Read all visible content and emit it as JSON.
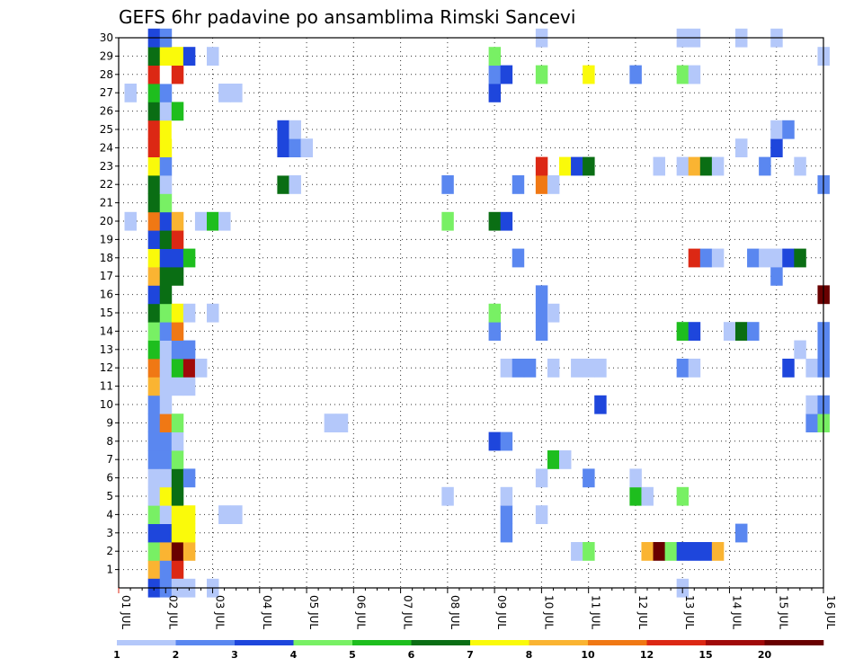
{
  "chart_data": {
    "type": "heatmap",
    "title": "GEFS 6hr padavine po ansamblima Rimski Sancevi",
    "xlabel": "",
    "ylabel": "",
    "x_ticks": [
      "01 JUL",
      "02 JUL",
      "03 JUL",
      "04 JUL",
      "05 JUL",
      "06 JUL",
      "07 JUL",
      "08 JUL",
      "09 JUL",
      "10 JUL",
      "11 JUL",
      "12 JUL",
      "13 JUL",
      "14 JUL",
      "15 JUL",
      "16 JUL"
    ],
    "y_ticks": [
      "1",
      "2",
      "3",
      "4",
      "5",
      "6",
      "7",
      "8",
      "9",
      "10",
      "11",
      "12",
      "13",
      "14",
      "15",
      "16",
      "17",
      "18",
      "19",
      "20",
      "21",
      "22",
      "23",
      "24",
      "25",
      "26",
      "27",
      "28",
      "29",
      "30"
    ],
    "xlim_days": [
      1,
      16
    ],
    "ylim": [
      0,
      30
    ],
    "grid": true,
    "legend_position": "bottom",
    "legend": {
      "labels": [
        "1",
        "2",
        "3",
        "4",
        "5",
        "6",
        "7",
        "8",
        "10",
        "12",
        "15",
        "20"
      ],
      "colors": [
        "#b4c8fa",
        "#5a87f0",
        "#1e46dc",
        "#78f064",
        "#1ebe1e",
        "#0a6e14",
        "#fafa0a",
        "#fab432",
        "#f07814",
        "#dc2814",
        "#a00a0a",
        "#690000"
      ]
    },
    "cells": [
      [
        1.75,
        1,
        "#fab432"
      ],
      [
        1.75,
        2,
        "#78f064"
      ],
      [
        1.75,
        3,
        "#1e46dc"
      ],
      [
        1.75,
        4,
        "#78f064"
      ],
      [
        1.75,
        5,
        "#b4c8fa"
      ],
      [
        1.75,
        6,
        "#b4c8fa"
      ],
      [
        1.75,
        7,
        "#5a87f0"
      ],
      [
        1.75,
        8,
        "#5a87f0"
      ],
      [
        1.75,
        9,
        "#5a87f0"
      ],
      [
        1.75,
        10,
        "#5a87f0"
      ],
      [
        1.75,
        11,
        "#fab432"
      ],
      [
        1.75,
        12,
        "#f07814"
      ],
      [
        1.75,
        13,
        "#1ebe1e"
      ],
      [
        1.75,
        14,
        "#78f064"
      ],
      [
        1.75,
        15,
        "#0a6e14"
      ],
      [
        1.75,
        16,
        "#1e46dc"
      ],
      [
        1.75,
        17,
        "#fab432"
      ],
      [
        1.75,
        18,
        "#fafa0a"
      ],
      [
        1.75,
        19,
        "#1e46dc"
      ],
      [
        1.75,
        20,
        "#f07814"
      ],
      [
        1.75,
        21,
        "#0a6e14"
      ],
      [
        1.75,
        22,
        "#0a6e14"
      ],
      [
        1.75,
        23,
        "#fafa0a"
      ],
      [
        1.75,
        24,
        "#dc2814"
      ],
      [
        1.75,
        25,
        "#dc2814"
      ],
      [
        1.75,
        26,
        "#0a6e14"
      ],
      [
        1.75,
        27,
        "#1ebe1e"
      ],
      [
        1.75,
        28,
        "#dc2814"
      ],
      [
        1.75,
        29,
        "#0a6e14"
      ],
      [
        1.75,
        30,
        "#1e46dc"
      ],
      [
        1.75,
        0,
        "#1e46dc"
      ],
      [
        2.0,
        1,
        "#5a87f0"
      ],
      [
        2.0,
        2,
        "#fab432"
      ],
      [
        2.0,
        3,
        "#1e46dc"
      ],
      [
        2.0,
        4,
        "#b4c8fa"
      ],
      [
        2.0,
        5,
        "#fafa0a"
      ],
      [
        2.0,
        6,
        "#b4c8fa"
      ],
      [
        2.0,
        7,
        "#5a87f0"
      ],
      [
        2.0,
        8,
        "#5a87f0"
      ],
      [
        2.0,
        9,
        "#f07814"
      ],
      [
        2.0,
        10,
        "#b4c8fa"
      ],
      [
        2.0,
        11,
        "#b4c8fa"
      ],
      [
        2.0,
        12,
        "#b4c8fa"
      ],
      [
        2.0,
        13,
        "#b4c8fa"
      ],
      [
        2.0,
        14,
        "#5a87f0"
      ],
      [
        2.0,
        15,
        "#78f064"
      ],
      [
        2.0,
        16,
        "#0a6e14"
      ],
      [
        2.0,
        17,
        "#0a6e14"
      ],
      [
        2.0,
        18,
        "#1e46dc"
      ],
      [
        2.0,
        19,
        "#0a6e14"
      ],
      [
        2.0,
        20,
        "#1e46dc"
      ],
      [
        2.0,
        21,
        "#78f064"
      ],
      [
        2.0,
        22,
        "#b4c8fa"
      ],
      [
        2.0,
        23,
        "#5a87f0"
      ],
      [
        2.0,
        24,
        "#fafa0a"
      ],
      [
        2.0,
        25,
        "#fafa0a"
      ],
      [
        2.0,
        26,
        "#b4c8fa"
      ],
      [
        2.0,
        27,
        "#5a87f0"
      ],
      [
        2.0,
        28,
        "#ffffff"
      ],
      [
        2.0,
        29,
        "#fafa0a"
      ],
      [
        2.0,
        30,
        "#5a87f0"
      ],
      [
        2.0,
        0,
        "#5a87f0"
      ],
      [
        2.25,
        1,
        "#dc2814"
      ],
      [
        2.25,
        2,
        "#690000"
      ],
      [
        2.25,
        3,
        "#fafa0a"
      ],
      [
        2.25,
        4,
        "#fafa0a"
      ],
      [
        2.25,
        5,
        "#0a6e14"
      ],
      [
        2.25,
        6,
        "#0a6e14"
      ],
      [
        2.25,
        7,
        "#78f064"
      ],
      [
        2.25,
        8,
        "#b4c8fa"
      ],
      [
        2.25,
        9,
        "#78f064"
      ],
      [
        2.25,
        11,
        "#b4c8fa"
      ],
      [
        2.25,
        12,
        "#1ebe1e"
      ],
      [
        2.25,
        13,
        "#5a87f0"
      ],
      [
        2.25,
        14,
        "#f07814"
      ],
      [
        2.25,
        15,
        "#fafa0a"
      ],
      [
        2.25,
        17,
        "#0a6e14"
      ],
      [
        2.25,
        18,
        "#1e46dc"
      ],
      [
        2.25,
        19,
        "#dc2814"
      ],
      [
        2.25,
        20,
        "#fab432"
      ],
      [
        2.25,
        25,
        "#ffffff"
      ],
      [
        2.25,
        26,
        "#1ebe1e"
      ],
      [
        2.25,
        28,
        "#dc2814"
      ],
      [
        2.25,
        29,
        "#fafa0a"
      ],
      [
        2.25,
        0,
        "#b4c8fa"
      ],
      [
        2.5,
        2,
        "#fab432"
      ],
      [
        2.5,
        3,
        "#fafa0a"
      ],
      [
        2.5,
        4,
        "#fafa0a"
      ],
      [
        2.5,
        6,
        "#5a87f0"
      ],
      [
        2.5,
        11,
        "#b4c8fa"
      ],
      [
        2.5,
        12,
        "#a00a0a"
      ],
      [
        2.5,
        13,
        "#5a87f0"
      ],
      [
        2.5,
        15,
        "#b4c8fa"
      ],
      [
        2.5,
        18,
        "#1ebe1e"
      ],
      [
        2.5,
        29,
        "#1e46dc"
      ],
      [
        2.5,
        0,
        "#b4c8fa"
      ],
      [
        2.75,
        12,
        "#b4c8fa"
      ],
      [
        2.75,
        20,
        "#b4c8fa"
      ],
      [
        3.0,
        15,
        "#b4c8fa"
      ],
      [
        3.0,
        20,
        "#1ebe1e"
      ],
      [
        3.0,
        29,
        "#b4c8fa"
      ],
      [
        3.0,
        0,
        "#b4c8fa"
      ],
      [
        3.25,
        4,
        "#b4c8fa"
      ],
      [
        3.25,
        20,
        "#b4c8fa"
      ],
      [
        3.25,
        27,
        "#b4c8fa"
      ],
      [
        3.5,
        4,
        "#b4c8fa"
      ],
      [
        3.5,
        27,
        "#b4c8fa"
      ],
      [
        1.25,
        20,
        "#b4c8fa"
      ],
      [
        1.25,
        27,
        "#b4c8fa"
      ],
      [
        4.5,
        22,
        "#0a6e14"
      ],
      [
        4.5,
        23,
        "#ffffff"
      ],
      [
        4.5,
        24,
        "#1e46dc"
      ],
      [
        4.5,
        25,
        "#1e46dc"
      ],
      [
        4.75,
        22,
        "#b4c8fa"
      ],
      [
        4.75,
        24,
        "#5a87f0"
      ],
      [
        4.75,
        25,
        "#b4c8fa"
      ],
      [
        5.0,
        24,
        "#b4c8fa"
      ],
      [
        5.5,
        9,
        "#b4c8fa"
      ],
      [
        5.75,
        9,
        "#b4c8fa"
      ],
      [
        8.0,
        5,
        "#b4c8fa"
      ],
      [
        8.0,
        20,
        "#78f064"
      ],
      [
        8.0,
        22,
        "#5a87f0"
      ],
      [
        9.0,
        8,
        "#1e46dc"
      ],
      [
        9.0,
        14,
        "#5a87f0"
      ],
      [
        9.0,
        15,
        "#78f064"
      ],
      [
        9.0,
        20,
        "#0a6e14"
      ],
      [
        9.0,
        27,
        "#1e46dc"
      ],
      [
        9.0,
        28,
        "#5a87f0"
      ],
      [
        9.0,
        29,
        "#78f064"
      ],
      [
        9.25,
        3,
        "#5a87f0"
      ],
      [
        9.25,
        4,
        "#5a87f0"
      ],
      [
        9.25,
        5,
        "#b4c8fa"
      ],
      [
        9.25,
        8,
        "#5a87f0"
      ],
      [
        9.25,
        12,
        "#b4c8fa"
      ],
      [
        9.25,
        20,
        "#1e46dc"
      ],
      [
        9.25,
        28,
        "#1e46dc"
      ],
      [
        9.5,
        12,
        "#5a87f0"
      ],
      [
        9.5,
        18,
        "#5a87f0"
      ],
      [
        9.5,
        22,
        "#5a87f0"
      ],
      [
        9.75,
        12,
        "#5a87f0"
      ],
      [
        10.0,
        4,
        "#b4c8fa"
      ],
      [
        10.0,
        6,
        "#b4c8fa"
      ],
      [
        10.0,
        14,
        "#5a87f0"
      ],
      [
        10.0,
        15,
        "#5a87f0"
      ],
      [
        10.0,
        16,
        "#5a87f0"
      ],
      [
        10.0,
        22,
        "#f07814"
      ],
      [
        10.0,
        23,
        "#dc2814"
      ],
      [
        10.0,
        28,
        "#78f064"
      ],
      [
        10.0,
        30,
        "#b4c8fa"
      ],
      [
        10.25,
        7,
        "#1ebe1e"
      ],
      [
        10.25,
        12,
        "#b4c8fa"
      ],
      [
        10.25,
        15,
        "#b4c8fa"
      ],
      [
        10.25,
        22,
        "#b4c8fa"
      ],
      [
        10.5,
        7,
        "#b4c8fa"
      ],
      [
        10.5,
        23,
        "#fafa0a"
      ],
      [
        10.75,
        2,
        "#b4c8fa"
      ],
      [
        10.75,
        12,
        "#b4c8fa"
      ],
      [
        10.75,
        23,
        "#1e46dc"
      ],
      [
        11.0,
        2,
        "#78f064"
      ],
      [
        11.0,
        6,
        "#5a87f0"
      ],
      [
        11.0,
        12,
        "#b4c8fa"
      ],
      [
        11.0,
        23,
        "#0a6e14"
      ],
      [
        11.0,
        28,
        "#fafa0a"
      ],
      [
        11.25,
        10,
        "#1e46dc"
      ],
      [
        11.25,
        12,
        "#b4c8fa"
      ],
      [
        12.0,
        5,
        "#1ebe1e"
      ],
      [
        12.0,
        6,
        "#b4c8fa"
      ],
      [
        12.0,
        28,
        "#5a87f0"
      ],
      [
        12.25,
        2,
        "#fab432"
      ],
      [
        12.25,
        5,
        "#b4c8fa"
      ],
      [
        12.5,
        2,
        "#690000"
      ],
      [
        12.5,
        23,
        "#b4c8fa"
      ],
      [
        12.75,
        2,
        "#78f064"
      ],
      [
        13.0,
        2,
        "#1e46dc"
      ],
      [
        13.0,
        5,
        "#78f064"
      ],
      [
        13.0,
        12,
        "#5a87f0"
      ],
      [
        13.0,
        14,
        "#1ebe1e"
      ],
      [
        13.0,
        23,
        "#b4c8fa"
      ],
      [
        13.0,
        28,
        "#78f064"
      ],
      [
        13.0,
        30,
        "#b4c8fa"
      ],
      [
        13.0,
        0,
        "#b4c8fa"
      ],
      [
        13.25,
        2,
        "#1e46dc"
      ],
      [
        13.25,
        12,
        "#b4c8fa"
      ],
      [
        13.25,
        14,
        "#1e46dc"
      ],
      [
        13.25,
        18,
        "#dc2814"
      ],
      [
        13.25,
        23,
        "#fab432"
      ],
      [
        13.25,
        28,
        "#b4c8fa"
      ],
      [
        13.25,
        30,
        "#b4c8fa"
      ],
      [
        13.5,
        2,
        "#1e46dc"
      ],
      [
        13.5,
        18,
        "#5a87f0"
      ],
      [
        13.5,
        23,
        "#0a6e14"
      ],
      [
        13.75,
        2,
        "#fab432"
      ],
      [
        13.75,
        18,
        "#b4c8fa"
      ],
      [
        13.75,
        23,
        "#b4c8fa"
      ],
      [
        14.0,
        14,
        "#b4c8fa"
      ],
      [
        14.25,
        3,
        "#5a87f0"
      ],
      [
        14.25,
        14,
        "#0a6e14"
      ],
      [
        14.25,
        24,
        "#b4c8fa"
      ],
      [
        14.25,
        30,
        "#b4c8fa"
      ],
      [
        14.5,
        14,
        "#5a87f0"
      ],
      [
        14.5,
        18,
        "#5a87f0"
      ],
      [
        14.75,
        18,
        "#b4c8fa"
      ],
      [
        14.75,
        23,
        "#5a87f0"
      ],
      [
        15.0,
        17,
        "#5a87f0"
      ],
      [
        15.0,
        18,
        "#b4c8fa"
      ],
      [
        15.0,
        24,
        "#1e46dc"
      ],
      [
        15.0,
        25,
        "#b4c8fa"
      ],
      [
        15.0,
        30,
        "#b4c8fa"
      ],
      [
        15.25,
        12,
        "#1e46dc"
      ],
      [
        15.25,
        18,
        "#1e46dc"
      ],
      [
        15.25,
        25,
        "#5a87f0"
      ],
      [
        15.5,
        13,
        "#b4c8fa"
      ],
      [
        15.5,
        18,
        "#0a6e14"
      ],
      [
        15.5,
        23,
        "#b4c8fa"
      ],
      [
        15.75,
        9,
        "#5a87f0"
      ],
      [
        15.75,
        10,
        "#b4c8fa"
      ],
      [
        15.75,
        12,
        "#b4c8fa"
      ],
      [
        16.0,
        9,
        "#78f064"
      ],
      [
        16.0,
        10,
        "#5a87f0"
      ],
      [
        16.0,
        12,
        "#5a87f0"
      ],
      [
        16.0,
        13,
        "#5a87f0"
      ],
      [
        16.0,
        14,
        "#5a87f0"
      ],
      [
        16.0,
        16,
        "#690000"
      ],
      [
        16.0,
        22,
        "#5a87f0"
      ],
      [
        16.0,
        29,
        "#b4c8fa"
      ]
    ]
  }
}
